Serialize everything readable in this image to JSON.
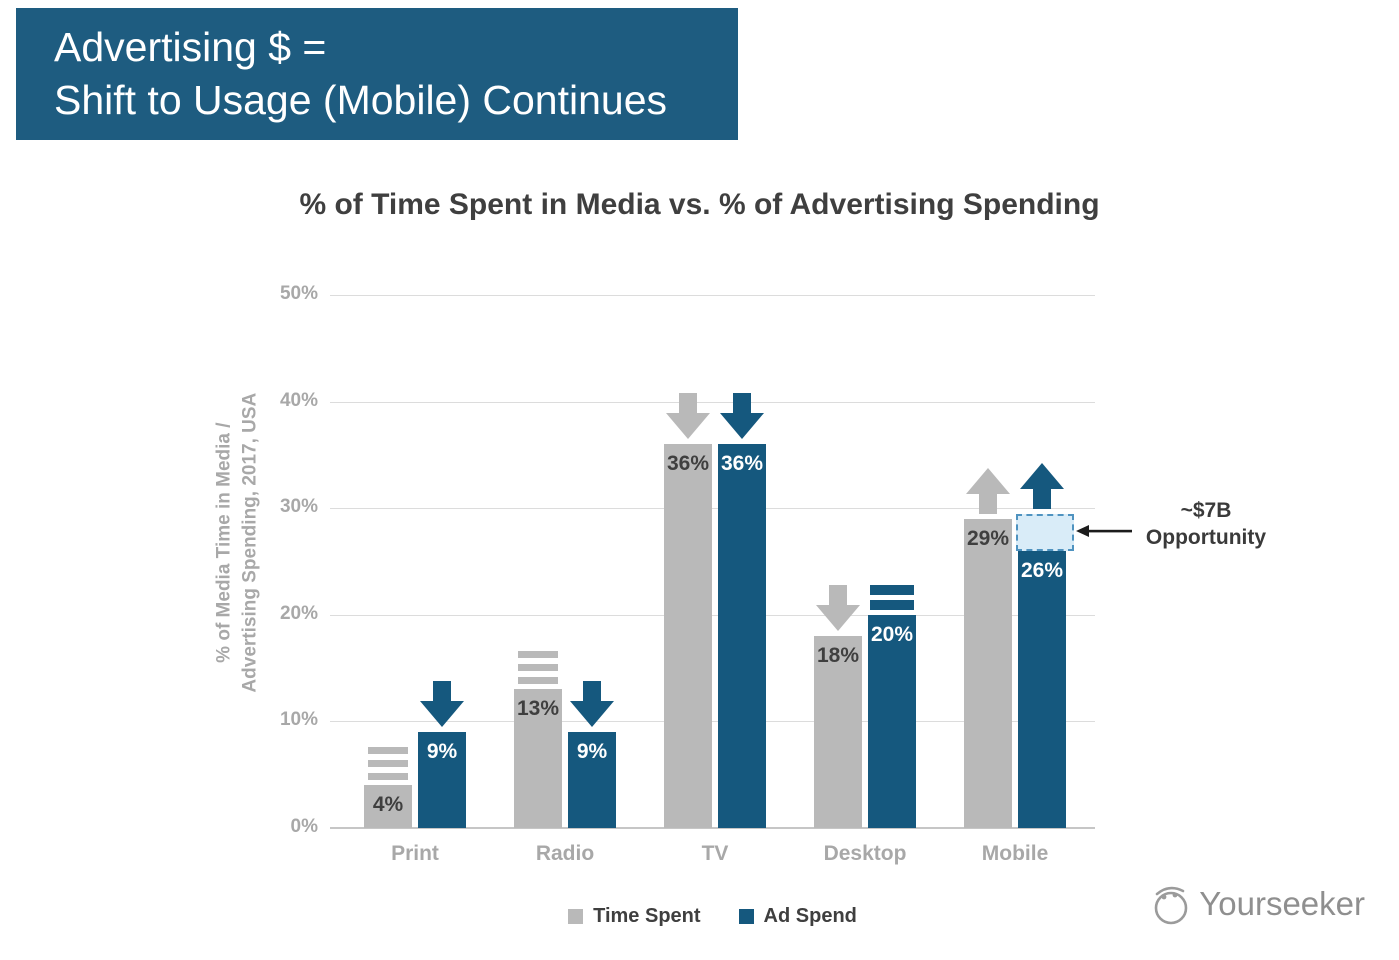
{
  "header": {
    "line1": "Advertising $ =",
    "line2": "Shift to Usage (Mobile) Continues",
    "bg": "#1e5c80"
  },
  "chart_data": {
    "type": "bar",
    "title": "% of Time Spent in Media vs. % of Advertising Spending",
    "categories": [
      "Print",
      "Radio",
      "TV",
      "Desktop",
      "Mobile"
    ],
    "series": [
      {
        "name": "Time Spent",
        "color": "#b9b9b9",
        "label_color": "#3f3f3f",
        "values": [
          4,
          13,
          36,
          18,
          29
        ],
        "trends": [
          "flat",
          "flat",
          "down",
          "down",
          "up"
        ]
      },
      {
        "name": "Ad Spend",
        "color": "#15587e",
        "label_color": "#ffffff",
        "values": [
          9,
          9,
          36,
          20,
          26
        ],
        "trends": [
          "down",
          "down",
          "down",
          "flat",
          "up"
        ]
      }
    ],
    "value_suffix": "%",
    "ylabel_line1": "% of Media Time in Media /",
    "ylabel_line2": "Advertising Spending, 2017, USA",
    "yticks": [
      "0%",
      "10%",
      "20%",
      "30%",
      "40%",
      "50%"
    ],
    "ylim": [
      0,
      50
    ],
    "grid": true,
    "legend_position": "bottom",
    "annotation": {
      "line1": "~$7B",
      "line2": "Opportunity",
      "category": "Mobile",
      "series": "Ad Spend",
      "box_from_value": 26,
      "box_to_value": 29.5,
      "box_border": "#4f93c0",
      "box_fill": "#d9ecf8",
      "arrow_color": "#1c1c1c"
    }
  },
  "watermark": {
    "text": "Yourseeker",
    "icon": "yourseeker-logo-icon"
  }
}
